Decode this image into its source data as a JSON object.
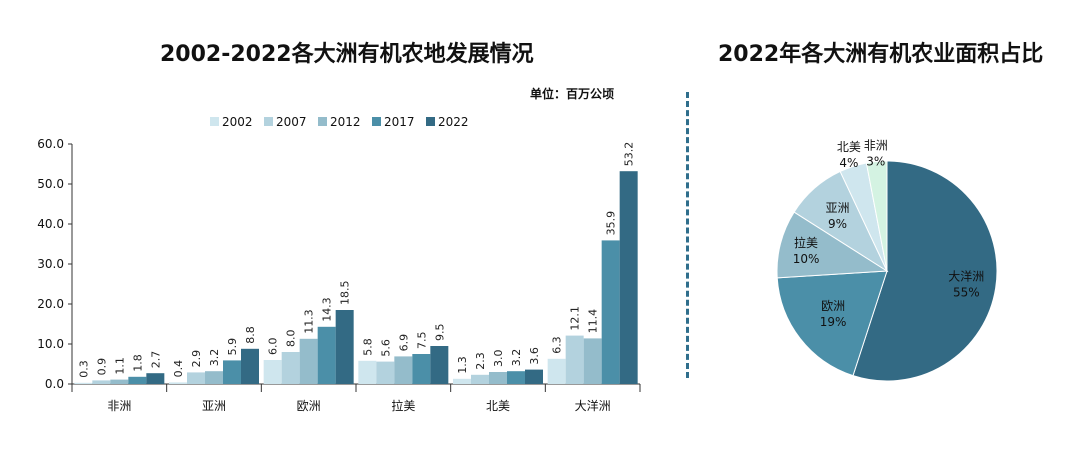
{
  "charts": {
    "bar_title": "2002-2022各大洲有机农地发展情况",
    "pie_title": "2022年各大洲有机农业面积占比",
    "unit": "单位：百万公顷"
  },
  "colors": {
    "2002": "#cfe6ee",
    "2007": "#b3d2de",
    "2012": "#94bccb",
    "2017": "#4b8fa8",
    "2022": "#336a84",
    "divider": "#2f6e8c"
  },
  "chart_data": [
    {
      "type": "bar",
      "title": "2002-2022各大洲有机农地发展情况",
      "unit": "单位：百万公顷",
      "categories": [
        "非洲",
        "亚洲",
        "欧洲",
        "拉美",
        "北美",
        "大洋洲"
      ],
      "series": [
        {
          "name": "2002",
          "values": [
            0.3,
            0.4,
            6.0,
            5.8,
            1.3,
            6.3
          ]
        },
        {
          "name": "2007",
          "values": [
            0.9,
            2.9,
            8.0,
            5.6,
            2.3,
            12.1
          ]
        },
        {
          "name": "2012",
          "values": [
            1.1,
            3.2,
            11.3,
            6.9,
            3.0,
            11.4
          ]
        },
        {
          "name": "2017",
          "values": [
            1.8,
            5.9,
            14.3,
            7.5,
            3.2,
            35.9
          ]
        },
        {
          "name": "2022",
          "values": [
            2.7,
            8.8,
            18.5,
            9.5,
            3.6,
            53.2
          ]
        }
      ],
      "ylim": [
        0,
        60
      ],
      "yticks": [
        "0.0",
        "10.0",
        "20.0",
        "30.0",
        "40.0",
        "50.0",
        "60.0"
      ],
      "legend": "top",
      "grid": false
    },
    {
      "type": "pie",
      "title": "2022年各大洲有机农业面积占比",
      "slices": [
        {
          "label": "大洋洲",
          "value": 55,
          "text": "55%",
          "color": "#336a84"
        },
        {
          "label": "欧洲",
          "value": 19,
          "text": "19%",
          "color": "#4b8fa8"
        },
        {
          "label": "拉美",
          "value": 10,
          "text": "10%",
          "color": "#94bccb"
        },
        {
          "label": "亚洲",
          "value": 9,
          "text": "9%",
          "color": "#b3d2de"
        },
        {
          "label": "北美",
          "value": 4,
          "text": "4%",
          "color": "#cfe6ee"
        },
        {
          "label": "非洲",
          "value": 3,
          "text": "3%",
          "color": "#d4f3e2"
        }
      ]
    }
  ]
}
